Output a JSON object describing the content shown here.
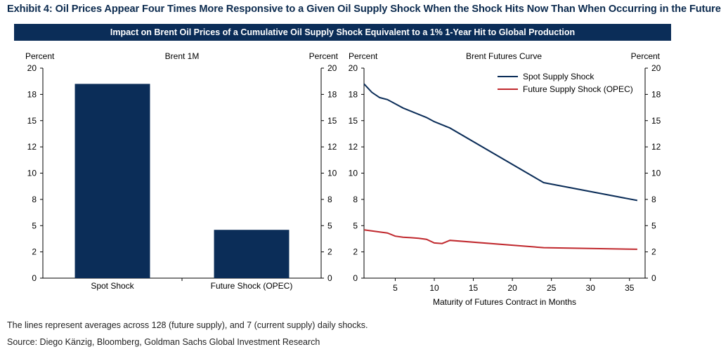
{
  "exhibit_title": "Exhibit 4: Oil Prices Appear Four Times More Responsive to a Given Oil Supply Shock When the Shock Hits Now Than When Occurring in the Future",
  "banner_title": "Impact on Brent Oil Prices of a Cumulative Oil Supply Shock Equivalent to a 1% 1-Year Hit to Global Production",
  "footnote": "The lines represent averages across 128 (future supply), and 7 (current supply) daily shocks.",
  "source": "Source: Diego Känzig, Bloomberg, Goldman Sachs Global Investment Research",
  "colors": {
    "navy": "#0b2d58",
    "red": "#c0282d"
  },
  "chart_data": [
    {
      "type": "bar",
      "title": "Brent 1M",
      "ylabel_left": "Percent",
      "ylabel_right": "Percent",
      "ylim": [
        0,
        20
      ],
      "yticks": [
        0,
        2,
        5,
        8,
        10,
        12,
        15,
        18,
        20
      ],
      "yticks_values": [
        0,
        2.5,
        5,
        7.5,
        10,
        12.5,
        15,
        17.5,
        20
      ],
      "categories": [
        "Spot Shock",
        "Future Shock (OPEC)"
      ],
      "values": [
        18.5,
        4.6
      ],
      "grid": false
    },
    {
      "type": "line",
      "title": "Brent Futures Curve",
      "xlabel": "Maturity of Futures Contract in Months",
      "ylabel_left": "Percent",
      "ylabel_right": "Percent",
      "xlim": [
        1,
        37
      ],
      "xticks": [
        5,
        10,
        15,
        20,
        25,
        30,
        35
      ],
      "ylim": [
        0,
        20
      ],
      "yticks": [
        0,
        2,
        5,
        8,
        10,
        12,
        15,
        18,
        20
      ],
      "yticks_values": [
        0,
        2.5,
        5,
        7.5,
        10,
        12.5,
        15,
        17.5,
        20
      ],
      "legend_position": "top-right",
      "grid": false,
      "series": [
        {
          "name": "Spot Supply Shock",
          "color": "#0b2d58",
          "x": [
            1,
            2,
            3,
            4,
            5,
            6,
            7,
            8,
            9,
            10,
            11,
            12,
            24,
            36
          ],
          "values": [
            18.5,
            17.7,
            17.2,
            17.0,
            16.6,
            16.2,
            15.9,
            15.6,
            15.3,
            14.9,
            14.6,
            14.3,
            9.1,
            7.4
          ]
        },
        {
          "name": "Future Supply Shock (OPEC)",
          "color": "#c0282d",
          "x": [
            1,
            2,
            3,
            4,
            5,
            6,
            7,
            8,
            9,
            10,
            11,
            12,
            24,
            36
          ],
          "values": [
            4.6,
            4.5,
            4.4,
            4.3,
            4.0,
            3.9,
            3.85,
            3.8,
            3.7,
            3.35,
            3.3,
            3.6,
            2.9,
            2.75
          ]
        }
      ]
    }
  ]
}
